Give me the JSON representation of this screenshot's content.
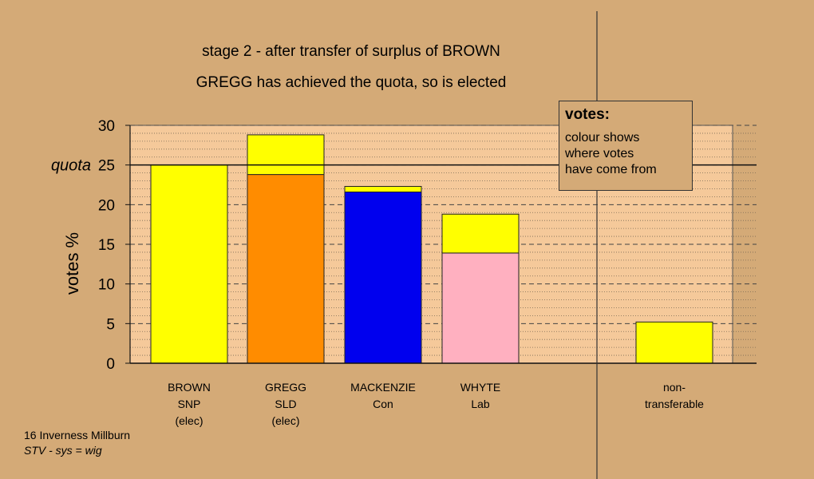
{
  "chart_data": {
    "type": "bar",
    "stacked": true,
    "title": "stage 2 - after transfer of surplus of BROWN",
    "subtitle": "GREGG has achieved the quota, so is elected",
    "ylabel": "votes %",
    "ylim": [
      0,
      30
    ],
    "yticks": [
      "0",
      "5",
      "10",
      "15",
      "20",
      "25",
      "30"
    ],
    "quota": {
      "label": "quota",
      "value": 25
    },
    "grid": true,
    "categories": [
      [
        "BROWN",
        "SNP",
        "(elec)"
      ],
      [
        "GREGG",
        "SLD",
        "(elec)"
      ],
      [
        "MACKENZIE",
        "Con"
      ],
      [
        "WHYTE",
        "Lab"
      ],
      [
        "non-",
        "transferable"
      ]
    ],
    "colors": {
      "snp": "#ffff00",
      "sld": "#ff8c00",
      "con": "#0000ee",
      "lab": "#ffb0c0",
      "background": "#d4aa77",
      "plot_area": "#f5c99a"
    },
    "segments": [
      [
        {
          "source": "snp",
          "value": 25.0
        }
      ],
      [
        {
          "source": "sld",
          "value": 23.8
        },
        {
          "source": "snp",
          "value": 5.0
        }
      ],
      [
        {
          "source": "con",
          "value": 21.6
        },
        {
          "source": "snp",
          "value": 0.7
        }
      ],
      [
        {
          "source": "lab",
          "value": 13.9
        },
        {
          "source": "snp",
          "value": 4.9
        }
      ],
      [
        {
          "source": "snp",
          "value": 5.2
        }
      ]
    ]
  },
  "legend": {
    "heading": "votes:",
    "lines": [
      "colour shows",
      "where votes",
      "have come from"
    ]
  },
  "footer": {
    "line1": "16 Inverness Millburn",
    "line2": "STV - sys = wig"
  }
}
